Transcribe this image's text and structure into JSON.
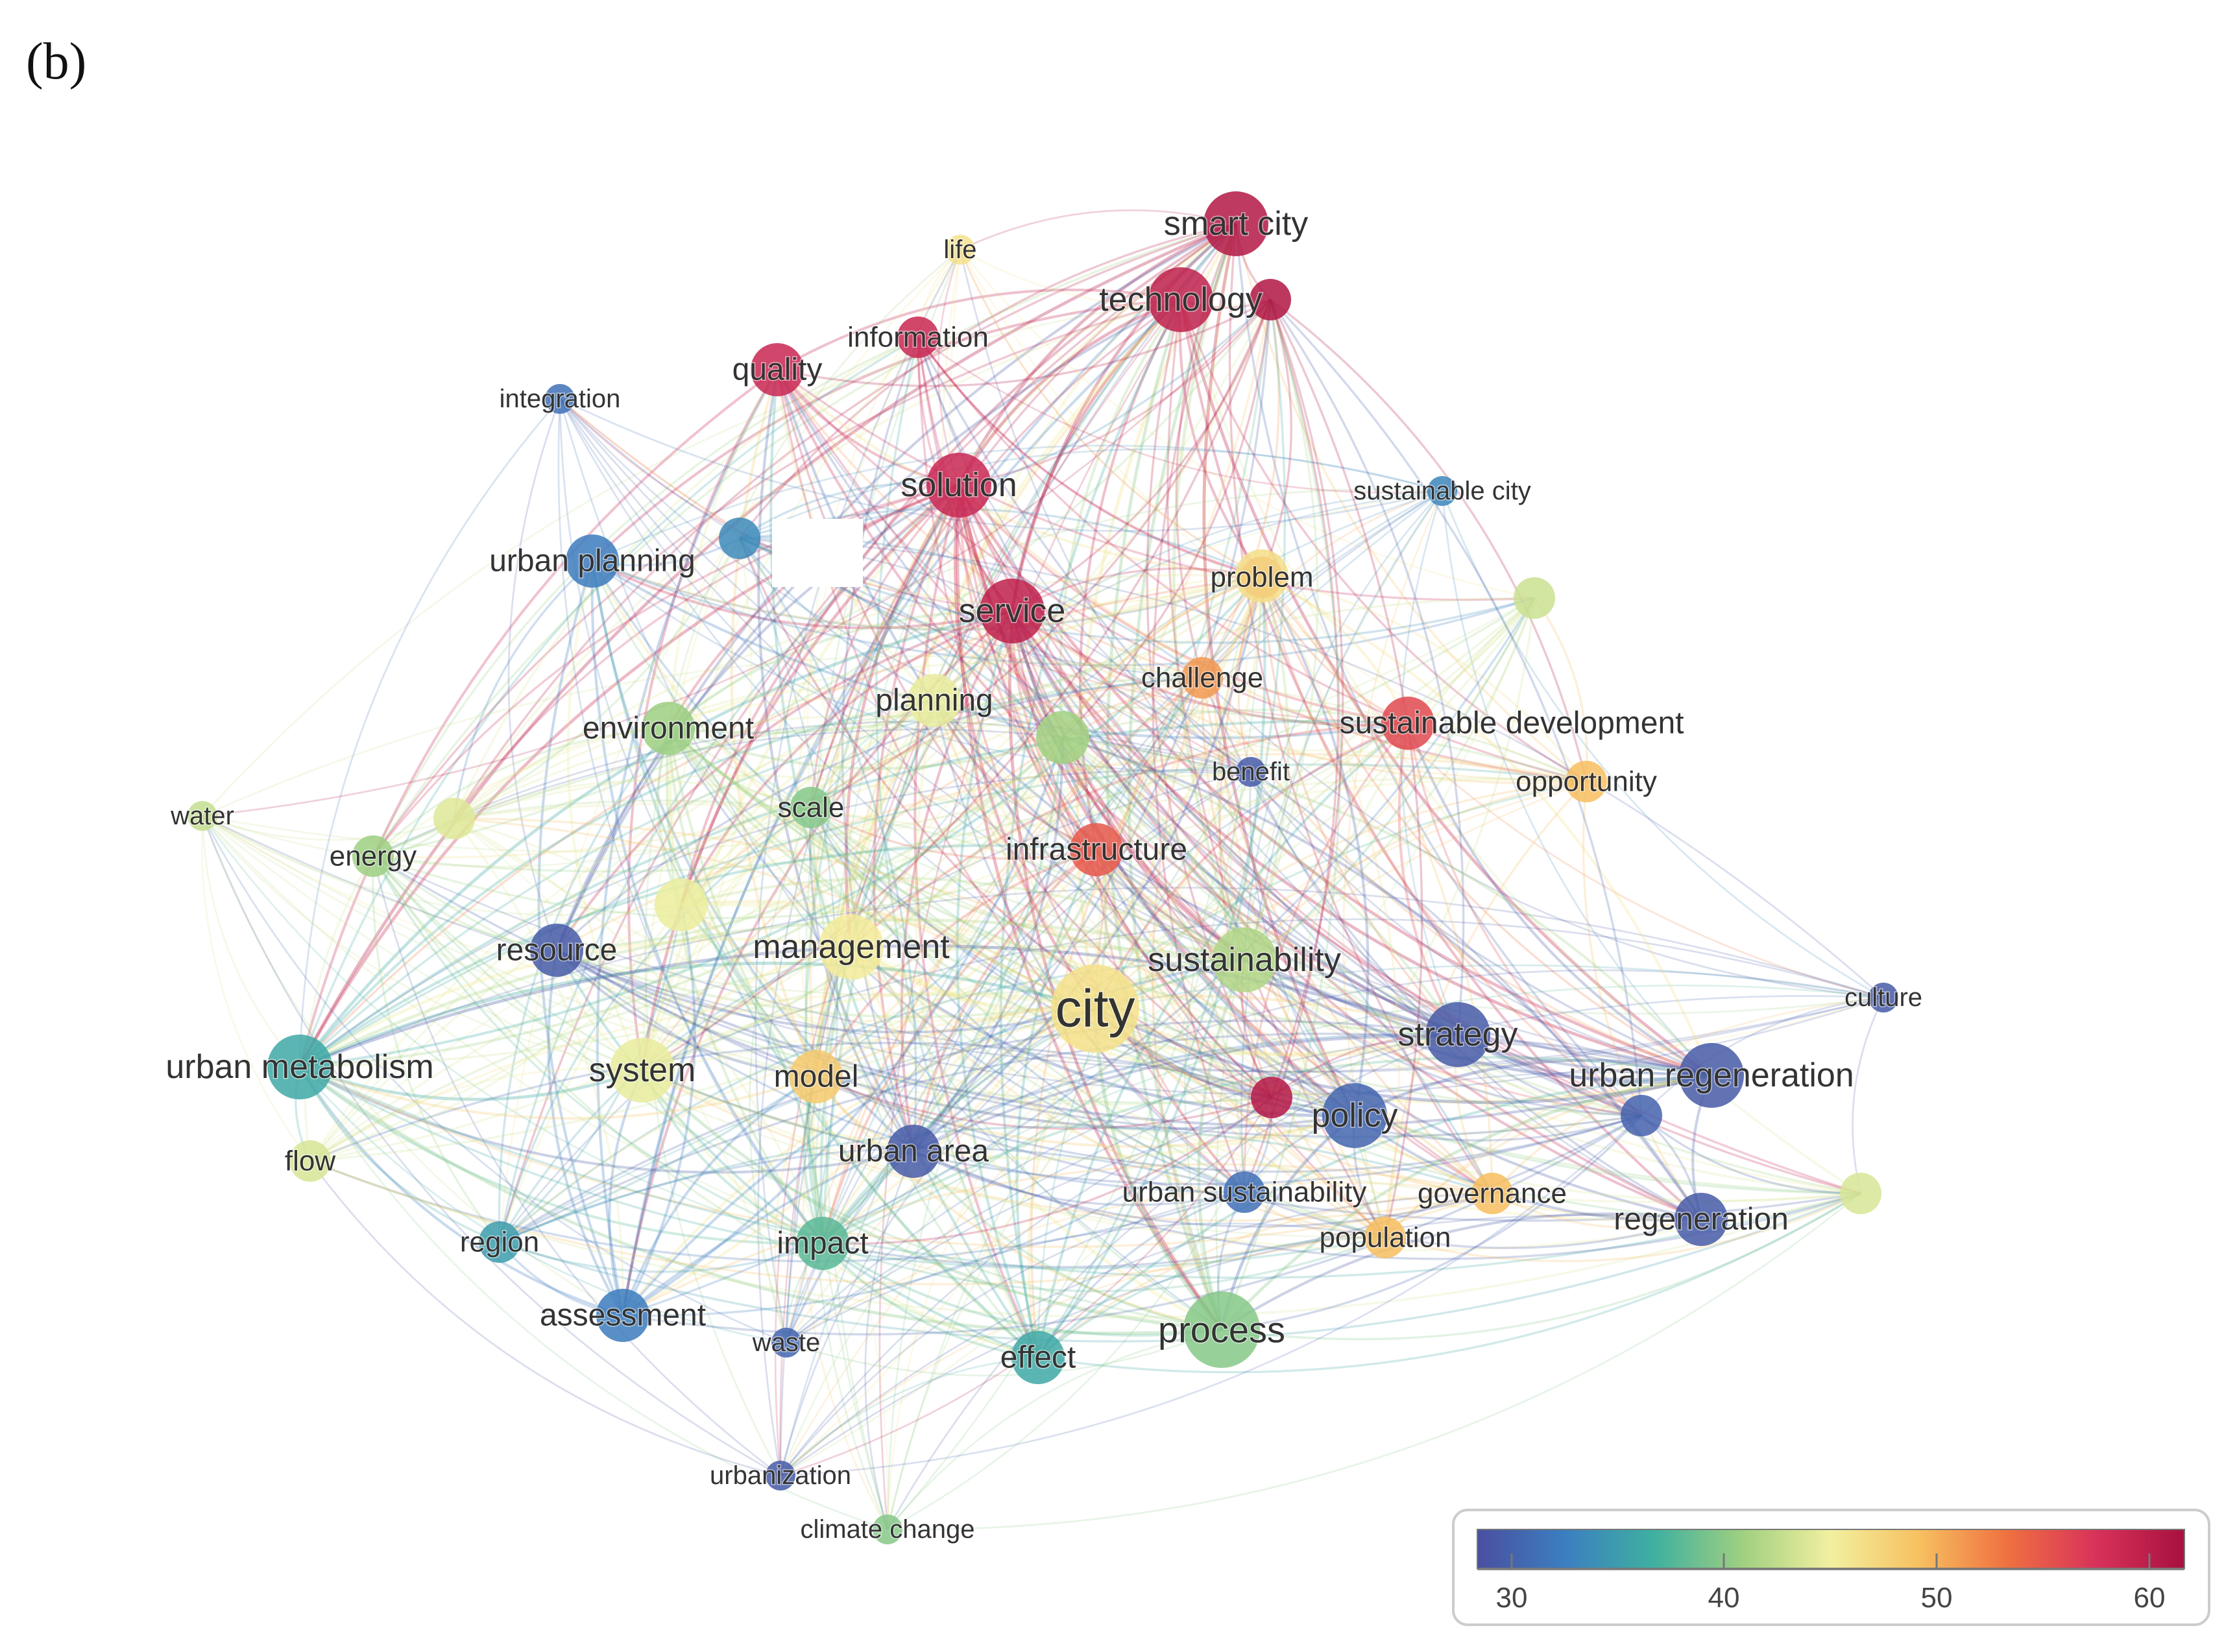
{
  "figure": {
    "panel_label": "(b)"
  },
  "colors": {
    "scale": [
      "#4a4fa0",
      "#3b7fc0",
      "#3fb0a0",
      "#9fd080",
      "#f2f0a0",
      "#f7c060",
      "#ef7040",
      "#d8325a",
      "#a8103f"
    ],
    "label": "#333333",
    "masked_patch": "#ffffff"
  },
  "network": {
    "nodes": [
      {
        "id": "smart-city",
        "label": "smart city",
        "score": 62,
        "weight": 4
      },
      {
        "id": "technology",
        "label": "technology",
        "score": 61,
        "weight": 4
      },
      {
        "id": "life",
        "label": "life",
        "score": 47,
        "weight": 1
      },
      {
        "id": "information",
        "label": "information",
        "score": 60,
        "weight": 2
      },
      {
        "id": "quality",
        "label": "quality",
        "score": 60,
        "weight": 3
      },
      {
        "id": "integration",
        "label": "integration",
        "score": 31,
        "weight": 1
      },
      {
        "id": "solution",
        "label": "solution",
        "score": 60,
        "weight": 4
      },
      {
        "id": "sustainable-city",
        "label": "sustainable city",
        "score": 33,
        "weight": 1
      },
      {
        "id": "urban-planning",
        "label": "urban planning",
        "score": 32,
        "weight": 3
      },
      {
        "id": "problem",
        "label": "problem",
        "score": 54,
        "weight": 2
      },
      {
        "id": "service",
        "label": "service",
        "score": 61,
        "weight": 4
      },
      {
        "id": "challenge",
        "label": "challenge",
        "score": 52,
        "weight": 2
      },
      {
        "id": "planning",
        "label": "planning",
        "score": 45,
        "weight": 3
      },
      {
        "id": "environment",
        "label": "environment",
        "score": 41,
        "weight": 3
      },
      {
        "id": "sustainable-development",
        "label": "sustainable development",
        "score": 57,
        "weight": 3
      },
      {
        "id": "benefit",
        "label": "benefit",
        "score": 29,
        "weight": 1
      },
      {
        "id": "opportunity",
        "label": "opportunity",
        "score": 50,
        "weight": 2
      },
      {
        "id": "water",
        "label": "water",
        "score": 43,
        "weight": 1
      },
      {
        "id": "energy",
        "label": "energy",
        "score": 41,
        "weight": 2
      },
      {
        "id": "scale",
        "label": "scale",
        "score": 40,
        "weight": 2
      },
      {
        "id": "infrastructure",
        "label": "infrastructure",
        "score": 56,
        "weight": 3
      },
      {
        "id": "resource",
        "label": "resource",
        "score": 29,
        "weight": 3
      },
      {
        "id": "management",
        "label": "management",
        "score": 46,
        "weight": 4
      },
      {
        "id": "sustainability",
        "label": "sustainability",
        "score": 42,
        "weight": 4
      },
      {
        "id": "city",
        "label": "city",
        "score": 47,
        "weight": 6
      },
      {
        "id": "culture",
        "label": "culture",
        "score": 29,
        "weight": 1
      },
      {
        "id": "strategy",
        "label": "strategy",
        "score": 29,
        "weight": 4
      },
      {
        "id": "urban-metabolism",
        "label": "urban metabolism",
        "score": 36,
        "weight": 4
      },
      {
        "id": "system",
        "label": "system",
        "score": 45,
        "weight": 4
      },
      {
        "id": "model",
        "label": "model",
        "score": 49,
        "weight": 3
      },
      {
        "id": "urban-regeneration",
        "label": "urban regeneration",
        "score": 29,
        "weight": 4
      },
      {
        "id": "policy",
        "label": "policy",
        "score": 30,
        "weight": 4
      },
      {
        "id": "flow",
        "label": "flow",
        "score": 44,
        "weight": 2
      },
      {
        "id": "urban-area",
        "label": "urban area",
        "score": 29,
        "weight": 3
      },
      {
        "id": "urban-sustainability",
        "label": "urban sustainability",
        "score": 31,
        "weight": 2
      },
      {
        "id": "governance",
        "label": "governance",
        "score": 50,
        "weight": 2
      },
      {
        "id": "region",
        "label": "region",
        "score": 35,
        "weight": 2
      },
      {
        "id": "impact",
        "label": "impact",
        "score": 38,
        "weight": 3
      },
      {
        "id": "population",
        "label": "population",
        "score": 50,
        "weight": 2
      },
      {
        "id": "regeneration",
        "label": "regeneration",
        "score": 29,
        "weight": 3
      },
      {
        "id": "assessment",
        "label": "assessment",
        "score": 32,
        "weight": 3
      },
      {
        "id": "waste",
        "label": "waste",
        "score": 30,
        "weight": 1
      },
      {
        "id": "effect",
        "label": "effect",
        "score": 36,
        "weight": 3
      },
      {
        "id": "process",
        "label": "process",
        "score": 40,
        "weight": 5
      },
      {
        "id": "urbanization",
        "label": "urbanization",
        "score": 29,
        "weight": 1
      },
      {
        "id": "climate-change",
        "label": "climate change",
        "score": 40,
        "weight": 1
      }
    ]
  },
  "color_scale": {
    "min": 28,
    "max": 63,
    "ticks": [
      "30",
      "40",
      "50",
      "60"
    ]
  }
}
